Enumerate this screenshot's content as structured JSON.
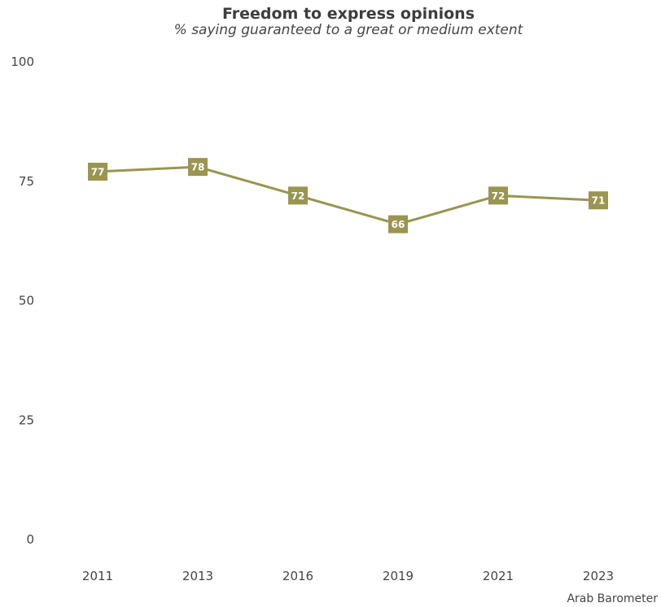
{
  "chart_data": {
    "type": "line",
    "title": "Freedom to express opinions",
    "subtitle": "% saying guaranteed to a great or medium extent",
    "x": [
      "2011",
      "2013",
      "2016",
      "2019",
      "2021",
      "2023"
    ],
    "series": [
      {
        "values": [
          77,
          78,
          72,
          66,
          72,
          71
        ],
        "color": "#9a9550"
      }
    ],
    "yticks": [
      0,
      25,
      50,
      75,
      100
    ],
    "ylim": [
      0,
      100
    ],
    "grid": false,
    "legend": "none",
    "source": "Arab Barometer"
  }
}
